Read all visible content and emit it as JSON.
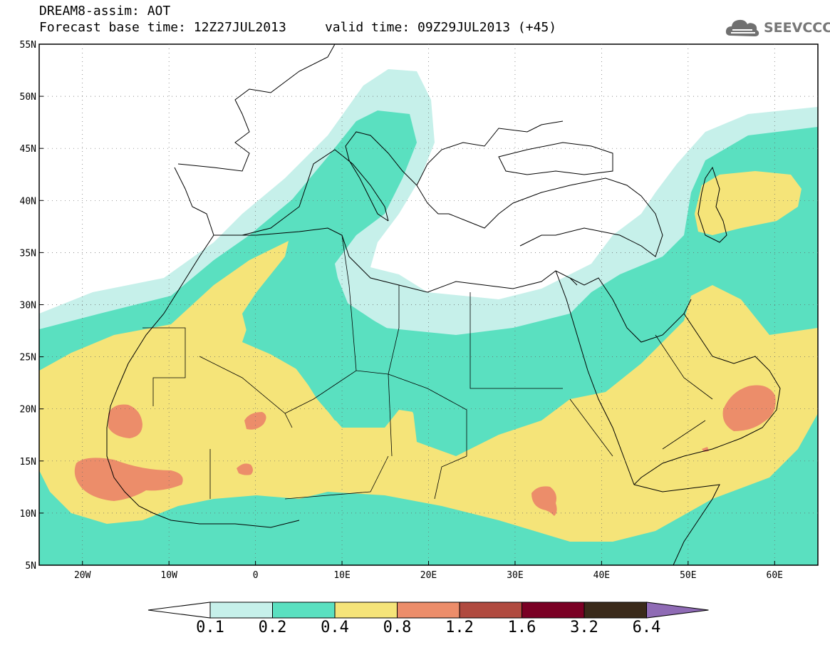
{
  "header": {
    "title_line1": "DREAM8-assim: AOT",
    "title_line2": "Forecast base time: 12Z27JUL2013     valid time: 09Z29JUL2013 (+45)"
  },
  "logo": {
    "icon": "cloud-icon",
    "text": "SEEVCCC"
  },
  "map": {
    "lon_range": [
      -25,
      65
    ],
    "lat_range": [
      5,
      55
    ],
    "lat_labels": [
      "55N",
      "50N",
      "45N",
      "40N",
      "35N",
      "30N",
      "25N",
      "20N",
      "15N",
      "10N",
      "5N"
    ],
    "lon_labels": [
      "20W",
      "10W",
      "0",
      "10E",
      "20E",
      "30E",
      "40E",
      "50E",
      "60E"
    ]
  },
  "legend": {
    "colors": [
      "#ffffff",
      "#c6f0ea",
      "#5ae0c0",
      "#f5e479",
      "#ec8d6a",
      "#b04a3f",
      "#7a0024",
      "#3a2a1a",
      "#8f6bb5"
    ],
    "labels": [
      "0.1",
      "0.2",
      "0.4",
      "0.8",
      "1.2",
      "1.6",
      "3.2",
      "6.4"
    ]
  }
}
